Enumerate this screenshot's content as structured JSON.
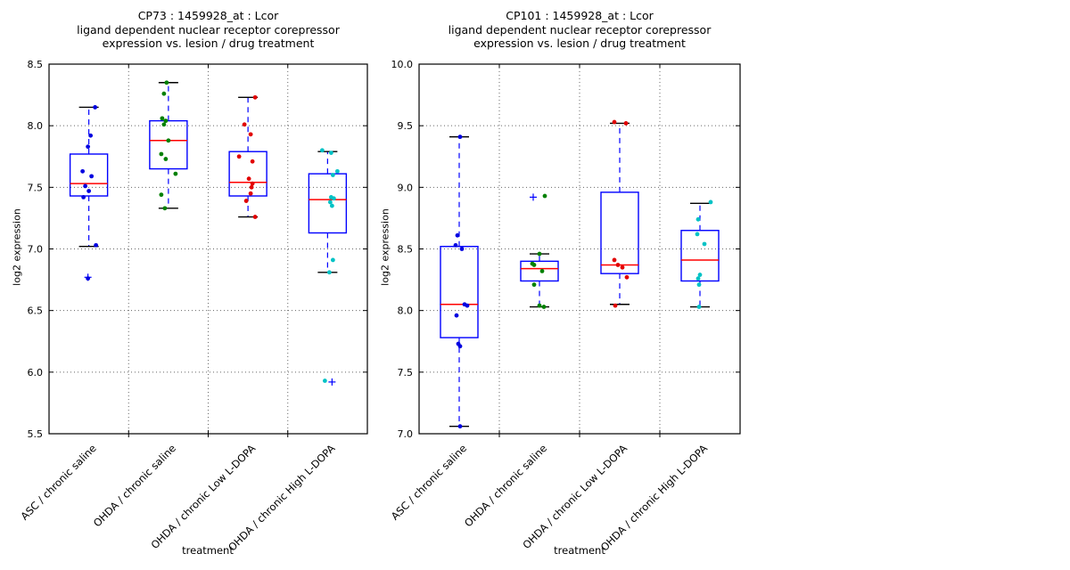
{
  "figure": {
    "background": "#ffffff",
    "colors": {
      "box": "#0000ff",
      "median": "#ff0000",
      "whisker": "#0000ff",
      "cap": "#000000",
      "flier": "#0000ff",
      "grid": "#666666",
      "spine": "#000000"
    }
  },
  "chart_data": [
    {
      "type": "box",
      "title_lines": [
        "CP73 : 1459928_at : Lcor",
        "ligand dependent nuclear receptor corepressor",
        "expression vs. lesion / drug treatment"
      ],
      "ylabel": "log2 expression",
      "xlabel": "treatment",
      "ylim": [
        5.5,
        8.5
      ],
      "yticks": [
        5.5,
        6.0,
        6.5,
        7.0,
        7.5,
        8.0,
        8.5
      ],
      "grid": true,
      "categories": [
        "ASC / chronic saline",
        "OHDA / chronic saline",
        "OHDA / chronic Low L-DOPA",
        "OHDA / chronic High L-DOPA"
      ],
      "groups": [
        {
          "label": "ASC / chronic saline",
          "point_color": "#0000e0",
          "whislo": 7.02,
          "q1": 7.43,
          "med": 7.53,
          "q3": 7.77,
          "whishi": 8.15,
          "fliers": [
            [
              -1,
              6.77
            ]
          ],
          "points": [
            [
              7,
              8.15
            ],
            [
              2,
              7.92
            ],
            [
              -1,
              7.83
            ],
            [
              -7,
              7.63
            ],
            [
              3,
              7.59
            ],
            [
              -4,
              7.51
            ],
            [
              0,
              7.47
            ],
            [
              -6,
              7.42
            ],
            [
              8,
              7.03
            ],
            [
              -1,
              6.76
            ]
          ]
        },
        {
          "label": "OHDA / chronic saline",
          "point_color": "#008000",
          "whislo": 7.33,
          "q1": 7.65,
          "med": 7.88,
          "q3": 8.04,
          "whishi": 8.35,
          "fliers": [],
          "points": [
            [
              -2,
              8.35
            ],
            [
              -5,
              8.26
            ],
            [
              -7,
              8.06
            ],
            [
              -3,
              8.04
            ],
            [
              -5,
              8.01
            ],
            [
              0,
              7.88
            ],
            [
              -8,
              7.77
            ],
            [
              -3,
              7.73
            ],
            [
              8,
              7.61
            ],
            [
              -8,
              7.44
            ],
            [
              -4,
              7.33
            ]
          ]
        },
        {
          "label": "OHDA / chronic Low L-DOPA",
          "point_color": "#e10000",
          "whislo": 7.26,
          "q1": 7.43,
          "med": 7.54,
          "q3": 7.79,
          "whishi": 8.23,
          "fliers": [],
          "points": [
            [
              8,
              8.23
            ],
            [
              -4,
              8.01
            ],
            [
              3,
              7.93
            ],
            [
              -10,
              7.75
            ],
            [
              5,
              7.71
            ],
            [
              1,
              7.57
            ],
            [
              5,
              7.53
            ],
            [
              4,
              7.5
            ],
            [
              3,
              7.45
            ],
            [
              -2,
              7.39
            ],
            [
              8,
              7.26
            ]
          ]
        },
        {
          "label": "OHDA / chronic High L-DOPA",
          "point_color": "#00c2c5",
          "whislo": 6.81,
          "q1": 7.13,
          "med": 7.4,
          "q3": 7.61,
          "whishi": 7.79,
          "fliers": [
            [
              5,
              5.92
            ]
          ],
          "points": [
            [
              -6,
              7.8
            ],
            [
              4,
              7.78
            ],
            [
              11,
              7.63
            ],
            [
              6,
              7.6
            ],
            [
              4,
              7.42
            ],
            [
              7,
              7.41
            ],
            [
              3,
              7.38
            ],
            [
              5,
              7.35
            ],
            [
              6,
              6.91
            ],
            [
              2,
              6.81
            ],
            [
              -3,
              5.93
            ]
          ]
        }
      ]
    },
    {
      "type": "box",
      "title_lines": [
        "CP101 : 1459928_at : Lcor",
        "ligand dependent nuclear receptor corepressor",
        "expression vs. lesion / drug treatment"
      ],
      "ylabel": "log2 expression",
      "xlabel": "treatment",
      "ylim": [
        7.0,
        10.0
      ],
      "yticks": [
        7.0,
        7.5,
        8.0,
        8.5,
        9.0,
        9.5,
        10.0
      ],
      "grid": true,
      "categories": [
        "ASC / chronic saline",
        "OHDA / chronic saline",
        "OHDA / chronic Low L-DOPA",
        "OHDA / chronic High L-DOPA"
      ],
      "groups": [
        {
          "label": "ASC / chronic saline",
          "point_color": "#0000e0",
          "whislo": 7.06,
          "q1": 7.78,
          "med": 8.05,
          "q3": 8.52,
          "whishi": 9.41,
          "fliers": [],
          "points": [
            [
              1,
              9.41
            ],
            [
              -2,
              8.61
            ],
            [
              -4,
              8.53
            ],
            [
              3,
              8.5
            ],
            [
              6,
              8.05
            ],
            [
              9,
              8.04
            ],
            [
              -3,
              7.96
            ],
            [
              -1,
              7.73
            ],
            [
              1,
              7.71
            ],
            [
              1,
              7.06
            ]
          ]
        },
        {
          "label": "OHDA / chronic saline",
          "point_color": "#008000",
          "whislo": 8.03,
          "q1": 8.24,
          "med": 8.34,
          "q3": 8.4,
          "whishi": 8.46,
          "fliers": [
            [
              -7,
              8.92
            ]
          ],
          "points": [
            [
              6,
              8.93
            ],
            [
              0,
              8.46
            ],
            [
              -8,
              8.38
            ],
            [
              -6,
              8.37
            ],
            [
              3,
              8.32
            ],
            [
              -6,
              8.21
            ],
            [
              0,
              8.04
            ],
            [
              5,
              8.03
            ]
          ]
        },
        {
          "label": "OHDA / chronic Low L-DOPA",
          "point_color": "#e10000",
          "whislo": 8.05,
          "q1": 8.3,
          "med": 8.37,
          "q3": 8.96,
          "whishi": 9.52,
          "fliers": [],
          "points": [
            [
              -6,
              9.53
            ],
            [
              7,
              9.52
            ],
            [
              -6,
              8.41
            ],
            [
              -2,
              8.37
            ],
            [
              3,
              8.35
            ],
            [
              8,
              8.27
            ],
            [
              -5,
              8.04
            ]
          ]
        },
        {
          "label": "OHDA / chronic High L-DOPA",
          "point_color": "#00c2c5",
          "whislo": 8.03,
          "q1": 8.24,
          "med": 8.41,
          "q3": 8.65,
          "whishi": 8.87,
          "fliers": [],
          "points": [
            [
              12,
              8.88
            ],
            [
              -2,
              8.74
            ],
            [
              -3,
              8.62
            ],
            [
              5,
              8.54
            ],
            [
              0,
              8.29
            ],
            [
              -2,
              8.26
            ],
            [
              -1,
              8.21
            ],
            [
              -1,
              8.03
            ]
          ]
        }
      ]
    }
  ]
}
